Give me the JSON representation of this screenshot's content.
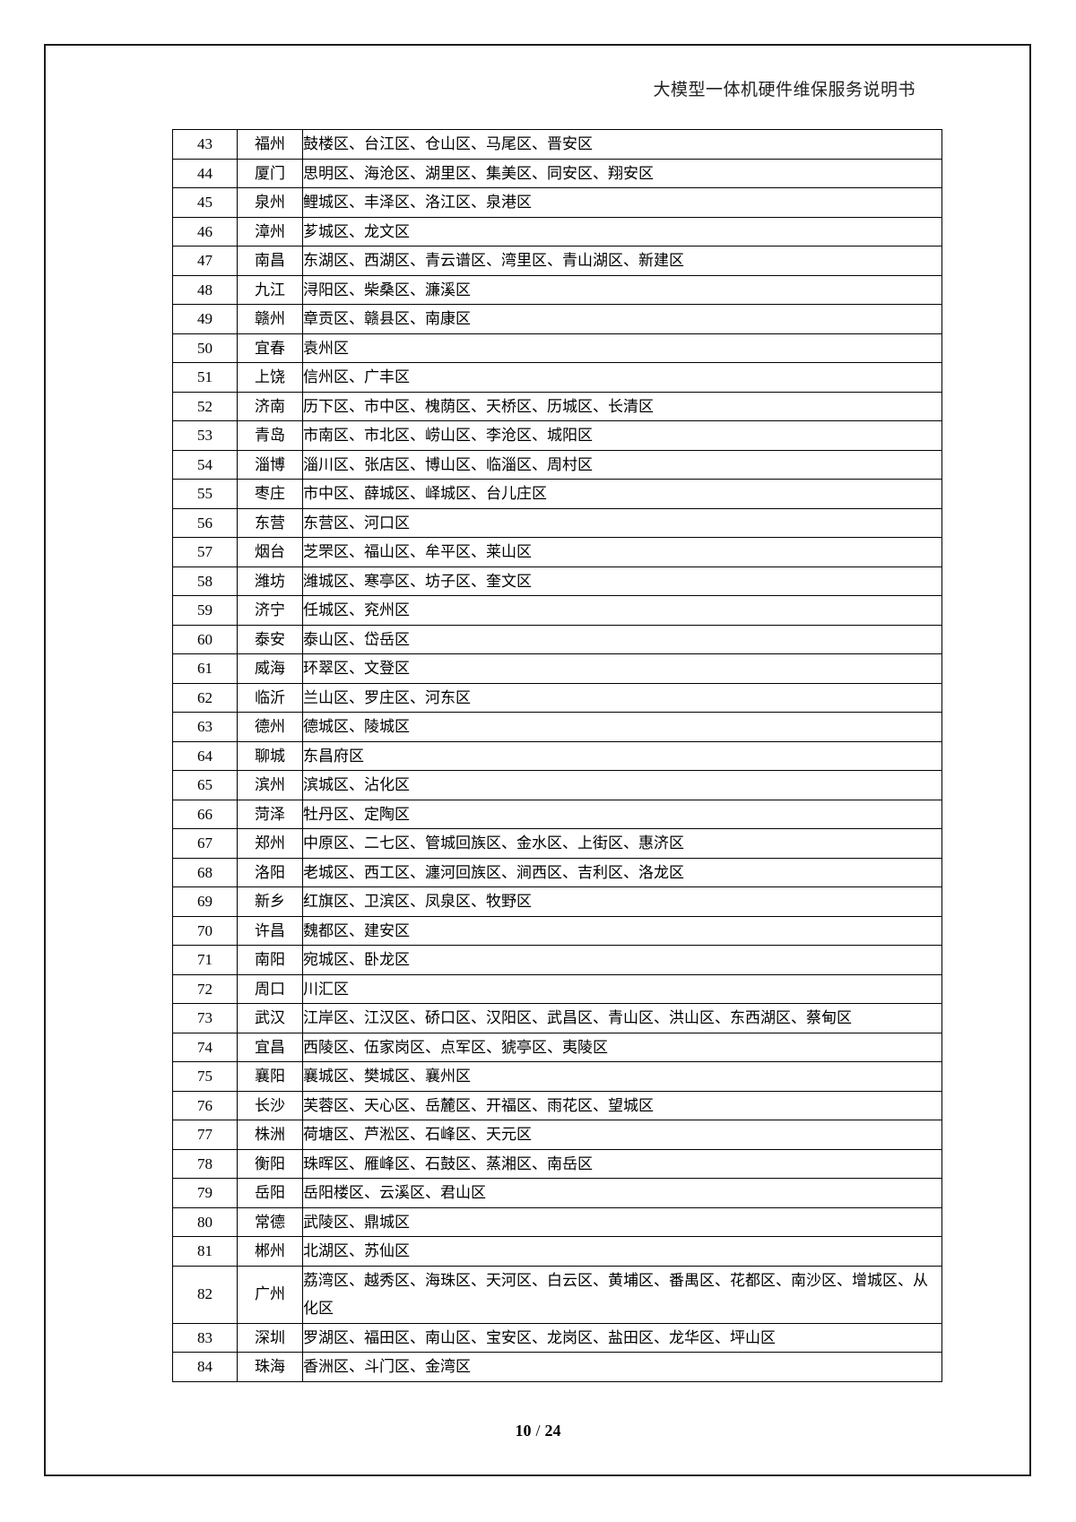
{
  "header": {
    "title": "大模型一体机硬件维保服务说明书"
  },
  "table": {
    "rows": [
      {
        "no": "43",
        "city": "福州",
        "districts": "鼓楼区、台江区、仓山区、马尾区、晋安区"
      },
      {
        "no": "44",
        "city": "厦门",
        "districts": "思明区、海沧区、湖里区、集美区、同安区、翔安区"
      },
      {
        "no": "45",
        "city": "泉州",
        "districts": "鲤城区、丰泽区、洛江区、泉港区"
      },
      {
        "no": "46",
        "city": "漳州",
        "districts": "芗城区、龙文区"
      },
      {
        "no": "47",
        "city": "南昌",
        "districts": "东湖区、西湖区、青云谱区、湾里区、青山湖区、新建区"
      },
      {
        "no": "48",
        "city": "九江",
        "districts": "浔阳区、柴桑区、濂溪区"
      },
      {
        "no": "49",
        "city": "赣州",
        "districts": "章贡区、赣县区、南康区"
      },
      {
        "no": "50",
        "city": "宜春",
        "districts": "袁州区"
      },
      {
        "no": "51",
        "city": "上饶",
        "districts": "信州区、广丰区"
      },
      {
        "no": "52",
        "city": "济南",
        "districts": "历下区、市中区、槐荫区、天桥区、历城区、长清区"
      },
      {
        "no": "53",
        "city": "青岛",
        "districts": "市南区、市北区、崂山区、李沧区、城阳区"
      },
      {
        "no": "54",
        "city": "淄博",
        "districts": "淄川区、张店区、博山区、临淄区、周村区"
      },
      {
        "no": "55",
        "city": "枣庄",
        "districts": "市中区、薛城区、峄城区、台儿庄区"
      },
      {
        "no": "56",
        "city": "东营",
        "districts": "东营区、河口区"
      },
      {
        "no": "57",
        "city": "烟台",
        "districts": "芝罘区、福山区、牟平区、莱山区"
      },
      {
        "no": "58",
        "city": "潍坊",
        "districts": "潍城区、寒亭区、坊子区、奎文区"
      },
      {
        "no": "59",
        "city": "济宁",
        "districts": "任城区、兖州区"
      },
      {
        "no": "60",
        "city": "泰安",
        "districts": "泰山区、岱岳区"
      },
      {
        "no": "61",
        "city": "威海",
        "districts": "环翠区、文登区"
      },
      {
        "no": "62",
        "city": "临沂",
        "districts": "兰山区、罗庄区、河东区"
      },
      {
        "no": "63",
        "city": "德州",
        "districts": "德城区、陵城区"
      },
      {
        "no": "64",
        "city": "聊城",
        "districts": "东昌府区"
      },
      {
        "no": "65",
        "city": "滨州",
        "districts": "滨城区、沾化区"
      },
      {
        "no": "66",
        "city": "菏泽",
        "districts": "牡丹区、定陶区"
      },
      {
        "no": "67",
        "city": "郑州",
        "districts": "中原区、二七区、管城回族区、金水区、上街区、惠济区"
      },
      {
        "no": "68",
        "city": "洛阳",
        "districts": "老城区、西工区、瀍河回族区、涧西区、吉利区、洛龙区"
      },
      {
        "no": "69",
        "city": "新乡",
        "districts": "红旗区、卫滨区、凤泉区、牧野区"
      },
      {
        "no": "70",
        "city": "许昌",
        "districts": "魏都区、建安区"
      },
      {
        "no": "71",
        "city": "南阳",
        "districts": "宛城区、卧龙区"
      },
      {
        "no": "72",
        "city": "周口",
        "districts": "川汇区"
      },
      {
        "no": "73",
        "city": "武汉",
        "districts": "江岸区、江汉区、硚口区、汉阳区、武昌区、青山区、洪山区、东西湖区、蔡甸区"
      },
      {
        "no": "74",
        "city": "宜昌",
        "districts": "西陵区、伍家岗区、点军区、猇亭区、夷陵区"
      },
      {
        "no": "75",
        "city": "襄阳",
        "districts": "襄城区、樊城区、襄州区"
      },
      {
        "no": "76",
        "city": "长沙",
        "districts": "芙蓉区、天心区、岳麓区、开福区、雨花区、望城区"
      },
      {
        "no": "77",
        "city": "株洲",
        "districts": "荷塘区、芦淞区、石峰区、天元区"
      },
      {
        "no": "78",
        "city": "衡阳",
        "districts": "珠晖区、雁峰区、石鼓区、蒸湘区、南岳区"
      },
      {
        "no": "79",
        "city": "岳阳",
        "districts": "岳阳楼区、云溪区、君山区"
      },
      {
        "no": "80",
        "city": "常德",
        "districts": "武陵区、鼎城区"
      },
      {
        "no": "81",
        "city": "郴州",
        "districts": "北湖区、苏仙区"
      },
      {
        "no": "82",
        "city": "广州",
        "districts": "荔湾区、越秀区、海珠区、天河区、白云区、黄埔区、番禺区、花都区、南沙区、增城区、从化区"
      },
      {
        "no": "83",
        "city": "深圳",
        "districts": "罗湖区、福田区、南山区、宝安区、龙岗区、盐田区、龙华区、坪山区"
      },
      {
        "no": "84",
        "city": "珠海",
        "districts": "香洲区、斗门区、金湾区"
      }
    ]
  },
  "footer": {
    "current": "10",
    "separator": "/",
    "total": "24"
  }
}
